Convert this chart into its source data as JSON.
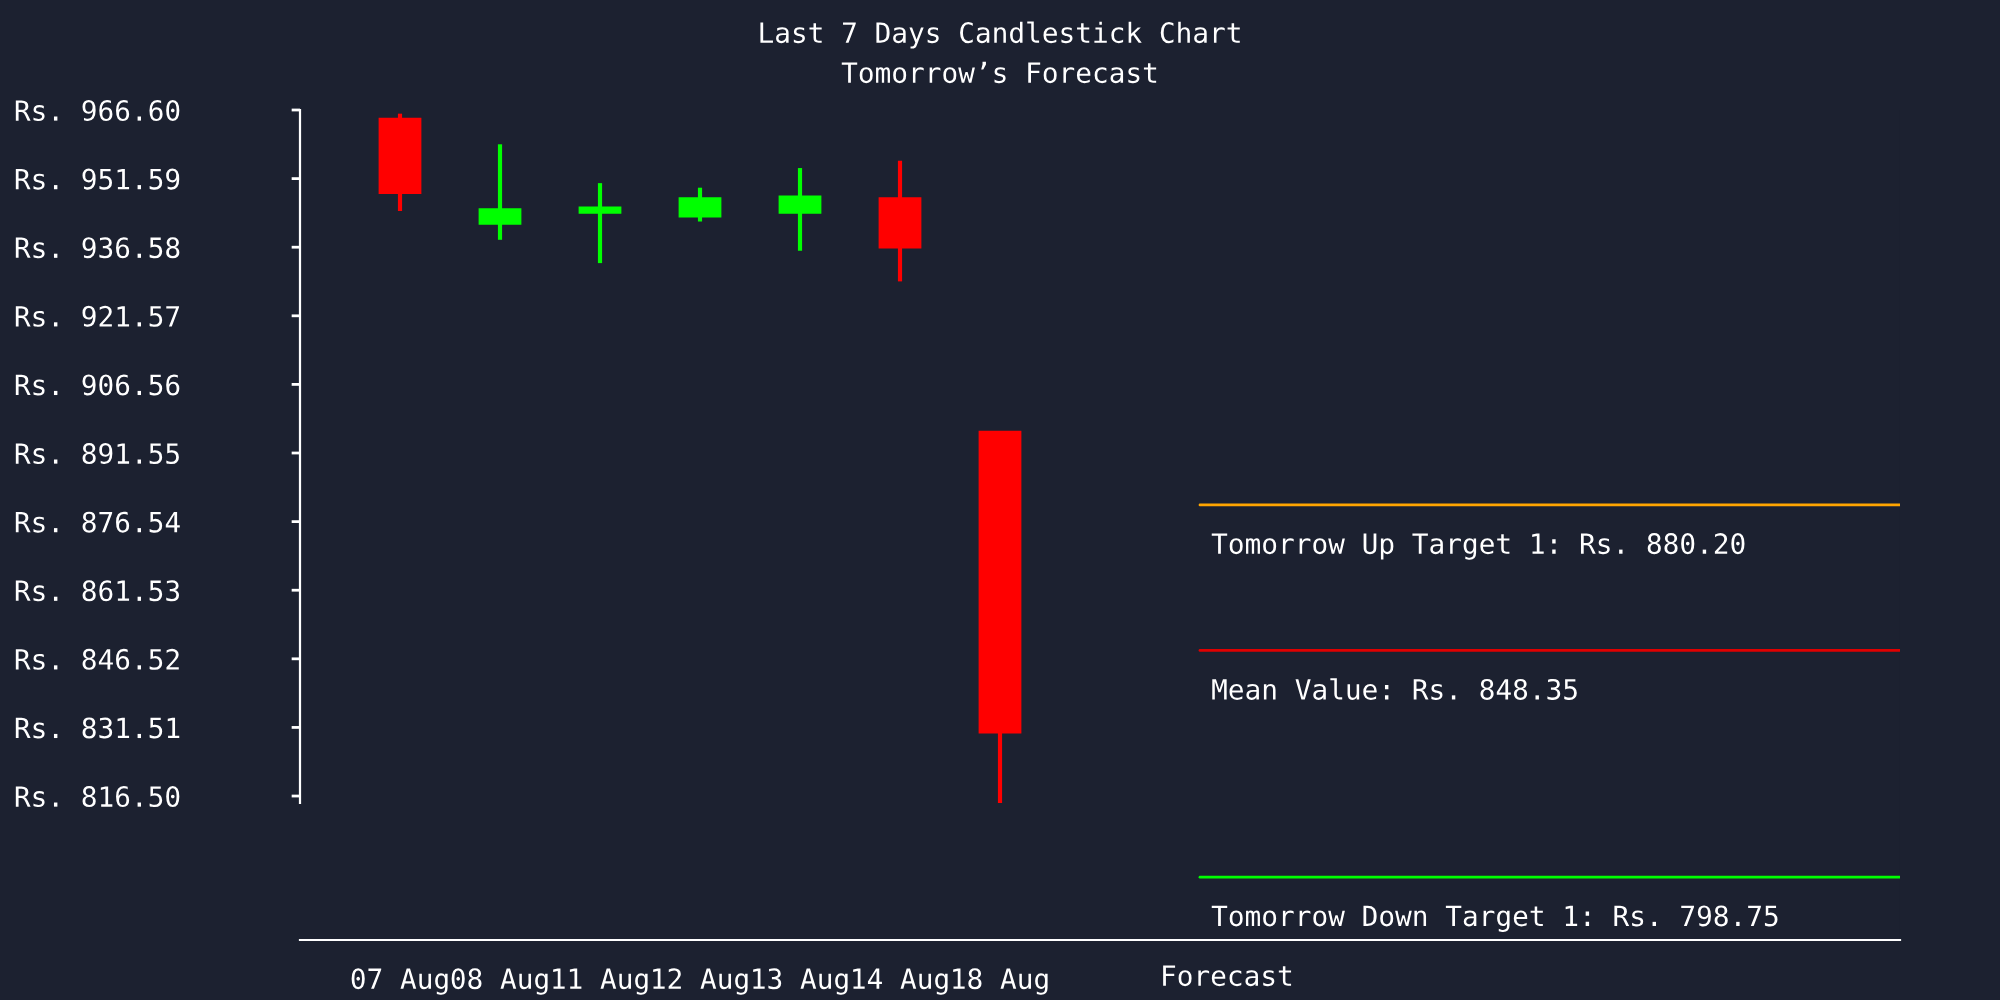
{
  "chart_data": {
    "type": "candlestick",
    "title": "Last 7 Days Candlestick Chart",
    "subtitle": "Tomorrow’s Forecast",
    "categories": [
      "07 Aug",
      "08 Aug",
      "11 Aug",
      "12 Aug",
      "13 Aug",
      "14 Aug",
      "18 Aug"
    ],
    "ohlc": [
      [
        964.6,
        965.8,
        944.5,
        948.5
      ],
      [
        941.8,
        959.1,
        938.2,
        944.8
      ],
      [
        944.2,
        950.6,
        933.1,
        945.2
      ],
      [
        943.4,
        949.6,
        942.2,
        947.2
      ],
      [
        944.2,
        953.9,
        935.8,
        947.6
      ],
      [
        947.2,
        955.5,
        929.1,
        936.6
      ],
      [
        896.1,
        896.1,
        815.0,
        830.5
      ]
    ],
    "colors": [
      "#ff0000",
      "#00ff00",
      "#00ff00",
      "#00ff00",
      "#00ff00",
      "#ff0000",
      "#ff0000"
    ],
    "ylim": [
      785,
      966.6
    ],
    "yticks": [
      {
        "value": 816.5,
        "label": "Rs. 816.50"
      },
      {
        "value": 831.51,
        "label": "Rs. 831.51"
      },
      {
        "value": 846.52,
        "label": "Rs. 846.52"
      },
      {
        "value": 861.53,
        "label": "Rs. 861.53"
      },
      {
        "value": 876.54,
        "label": "Rs. 876.54"
      },
      {
        "value": 891.55,
        "label": "Rs. 891.55"
      },
      {
        "value": 906.56,
        "label": "Rs. 906.56"
      },
      {
        "value": 921.57,
        "label": "Rs. 921.57"
      },
      {
        "value": 936.58,
        "label": "Rs. 936.58"
      },
      {
        "value": 951.59,
        "label": "Rs. 951.59"
      },
      {
        "value": 966.6,
        "label": "Rs. 966.60"
      }
    ],
    "ref_lines": [
      {
        "axis": "y",
        "value": 880.2,
        "label": "Tomorrow Up Target 1: Rs. 880.20",
        "color": "#ffa500"
      },
      {
        "axis": "y",
        "value": 848.35,
        "label": "Mean Value: Rs. 848.35",
        "color": "#e00000"
      },
      {
        "axis": "y",
        "value": 798.75,
        "label": "Tomorrow Down Target 1: Rs. 798.75",
        "color": "#00ff00"
      }
    ],
    "annotations": [
      "Forecast"
    ],
    "grid": false,
    "legend": false
  }
}
